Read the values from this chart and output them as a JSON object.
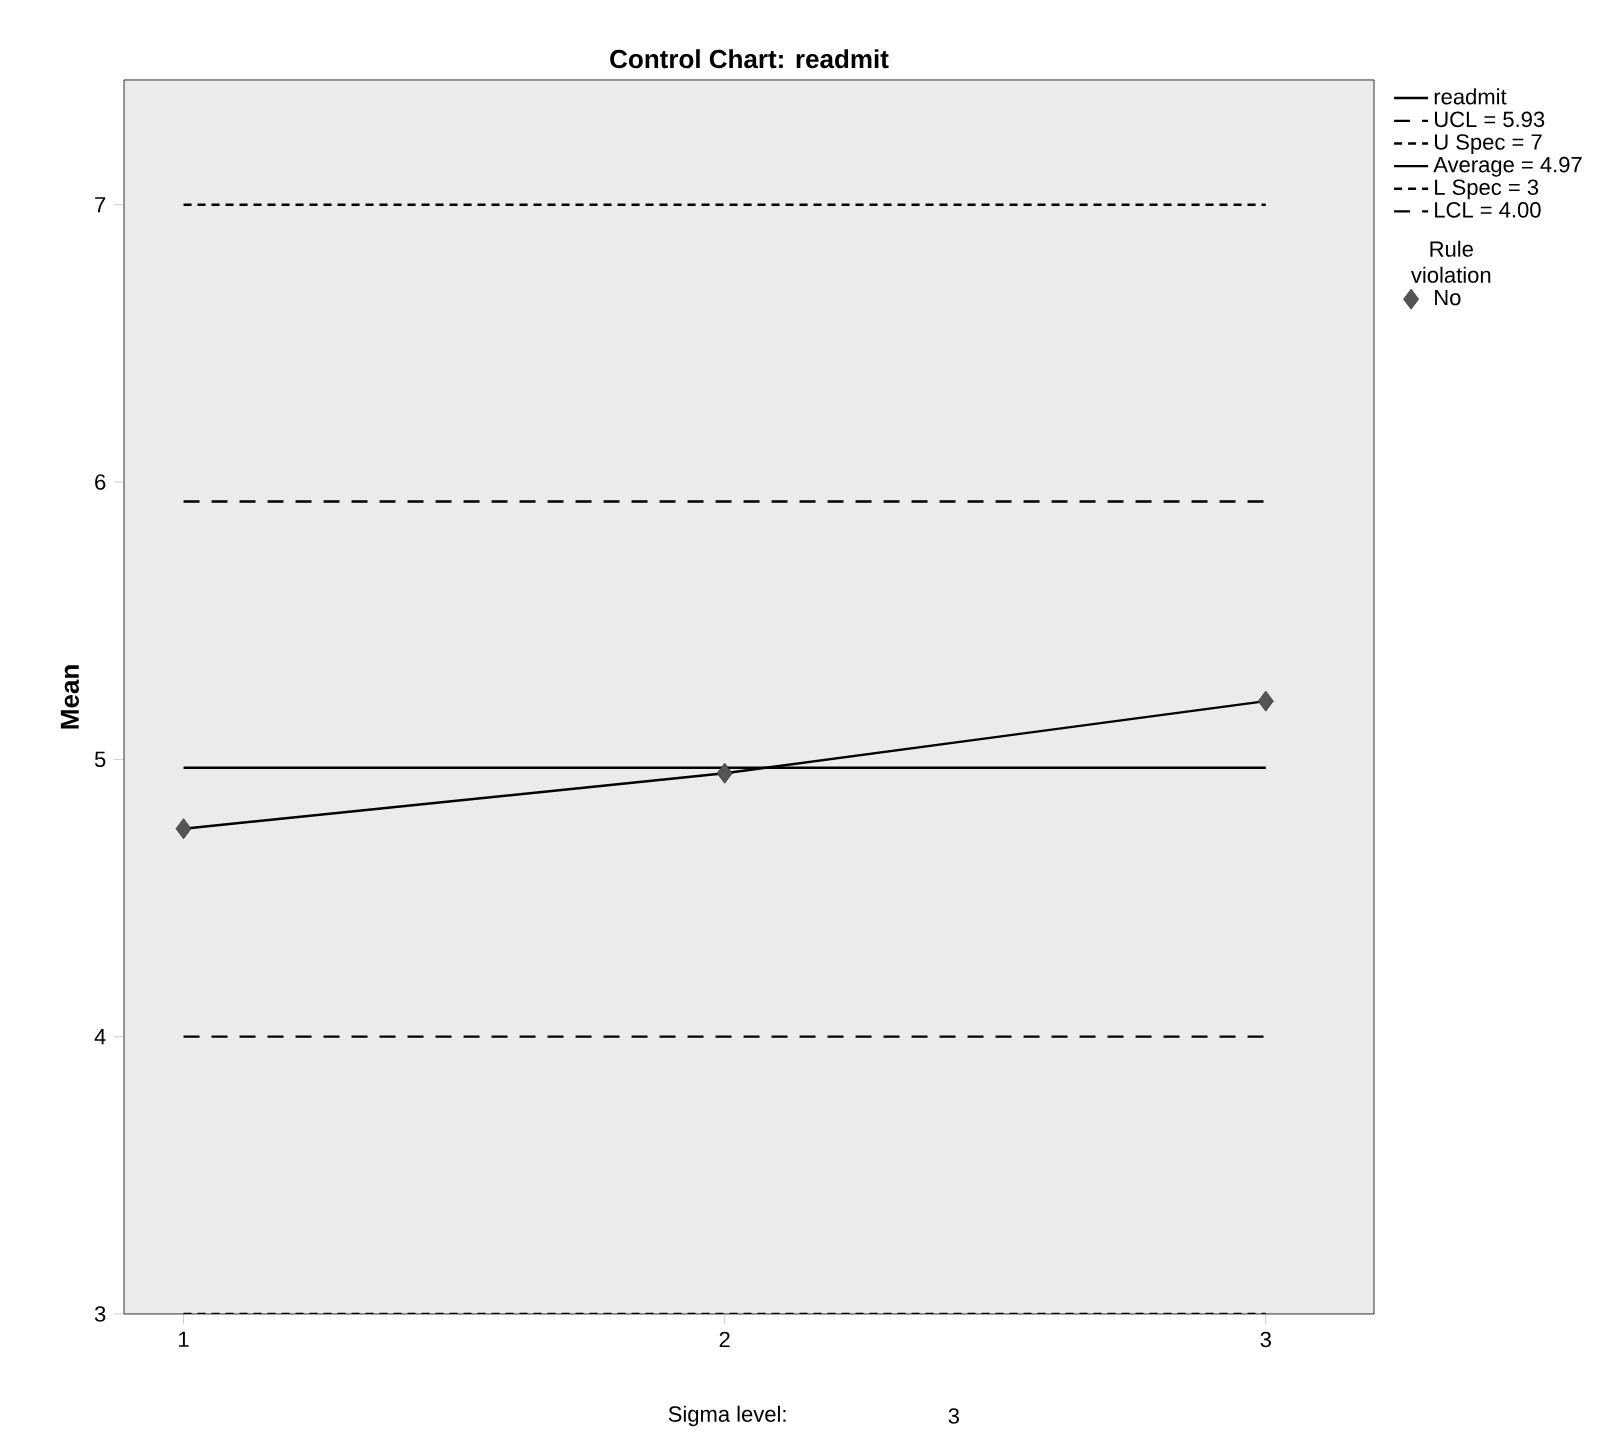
{
  "chart_data": {
    "type": "line",
    "title": "Control Chart: readmit",
    "ylabel": "Mean",
    "xlim": [
      0.89,
      3.2
    ],
    "xticks": [
      1,
      2,
      3
    ],
    "ylim": [
      3,
      7.45
    ],
    "yticks": [
      3,
      4,
      5,
      6,
      7
    ],
    "series": [
      {
        "name": "readmit",
        "type": "line",
        "color": "#000000",
        "x": [
          1,
          2,
          3
        ],
        "values": [
          4.75,
          4.95,
          5.21
        ],
        "line_style": "solid",
        "marker": "none"
      },
      {
        "name": "UCL = 5.93",
        "type": "line",
        "color": "#000000",
        "x": [
          1,
          3
        ],
        "values": [
          5.93,
          5.93
        ],
        "line_style": "dashed",
        "marker": "none"
      },
      {
        "name": "U Spec = 7",
        "type": "line",
        "color": "#000000",
        "x": [
          1,
          3
        ],
        "values": [
          7,
          7
        ],
        "line_style": "dotted",
        "marker": "none"
      },
      {
        "name": "Average = 4.97",
        "type": "line",
        "color": "#000000",
        "x": [
          1,
          3
        ],
        "values": [
          4.97,
          4.97
        ],
        "line_style": "solid",
        "marker": "none"
      },
      {
        "name": "L Spec = 3",
        "type": "line",
        "color": "#000000",
        "x": [
          1,
          3
        ],
        "values": [
          3,
          3
        ],
        "line_style": "dotted",
        "marker": "none"
      },
      {
        "name": "LCL = 4.00",
        "type": "line",
        "color": "#000000",
        "x": [
          1,
          3
        ],
        "values": [
          4.0,
          4.0
        ],
        "line_style": "dashed",
        "marker": "none"
      },
      {
        "name": "No",
        "type": "scatter",
        "color": "#555555",
        "x": [
          1,
          2,
          3
        ],
        "values": [
          4.75,
          4.95,
          5.21
        ],
        "marker": "diamond"
      }
    ],
    "legend_title": "Rule violation",
    "legend": "right",
    "annotations": [
      "Sigma level:",
      "3"
    ]
  }
}
